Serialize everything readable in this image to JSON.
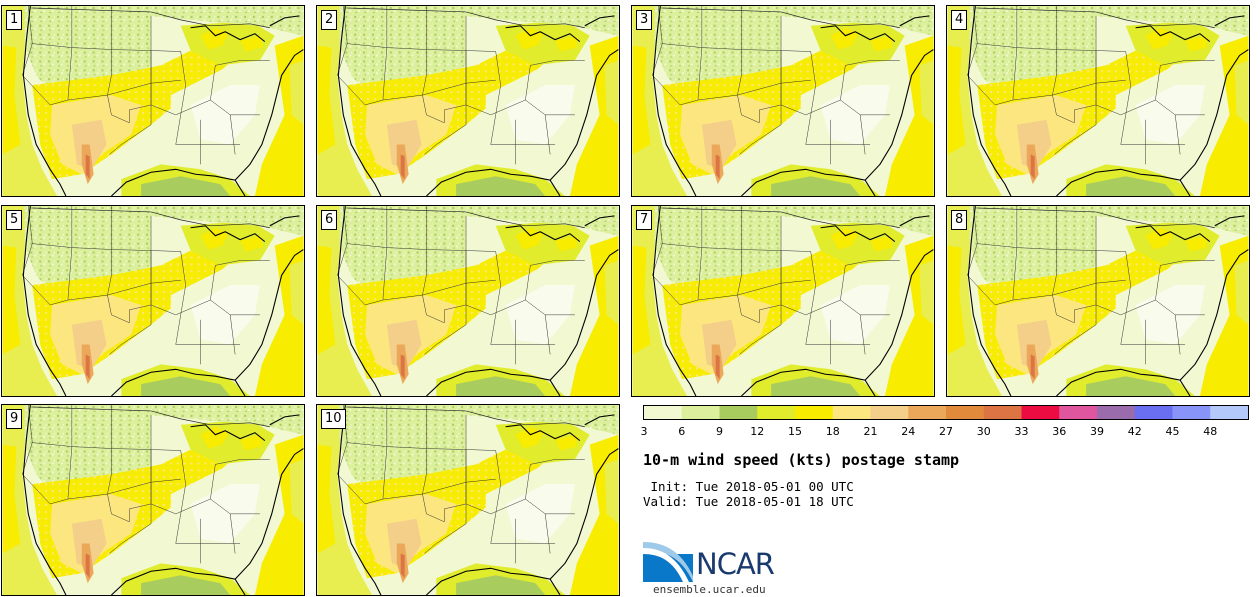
{
  "panels": [
    {
      "label": "1"
    },
    {
      "label": "2"
    },
    {
      "label": "3"
    },
    {
      "label": "4"
    },
    {
      "label": "5"
    },
    {
      "label": "6"
    },
    {
      "label": "7"
    },
    {
      "label": "8"
    },
    {
      "label": "9"
    },
    {
      "label": "10"
    }
  ],
  "colorbar": {
    "ticks": [
      "3",
      "6",
      "9",
      "12",
      "15",
      "18",
      "21",
      "24",
      "27",
      "30",
      "33",
      "36",
      "39",
      "42",
      "45",
      "48"
    ],
    "colors": [
      "#f1f8d2",
      "#dcef9c",
      "#a8cd5e",
      "#e0ec2c",
      "#f8ec00",
      "#fce680",
      "#f4cf8a",
      "#eba85a",
      "#e28a3c",
      "#dc7444",
      "#ec0c42",
      "#e0569e",
      "#9a6cac",
      "#6a6ef0",
      "#8894f8",
      "#b4c8fa"
    ]
  },
  "title": "10-m wind speed (kts) postage stamp",
  "init": " Init: Tue 2018-05-01 00 UTC",
  "valid": "Valid: Tue 2018-05-01 18 UTC",
  "logo": {
    "text": "NCAR",
    "url": "ensemble.ucar.edu"
  }
}
